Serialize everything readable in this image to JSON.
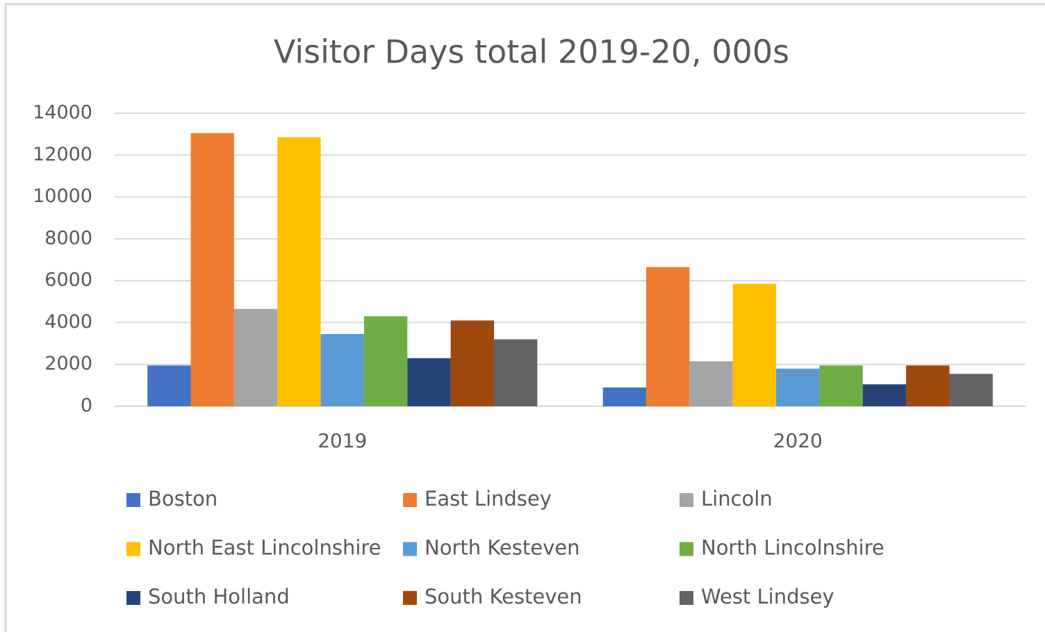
{
  "chart_data": {
    "type": "bar",
    "title": "Visitor Days total 2019-20, 000s",
    "categories": [
      "2019",
      "2020"
    ],
    "series": [
      {
        "name": "Boston",
        "color": "#4472c4",
        "values": [
          1950,
          900
        ]
      },
      {
        "name": "East Lindsey",
        "color": "#ed7d31",
        "values": [
          13050,
          6650
        ]
      },
      {
        "name": "Lincoln",
        "color": "#a5a5a5",
        "values": [
          4650,
          2150
        ]
      },
      {
        "name": "North East Lincolnshire",
        "color": "#ffc000",
        "values": [
          12850,
          5850
        ]
      },
      {
        "name": "North Kesteven",
        "color": "#5b9bd5",
        "values": [
          3450,
          1800
        ]
      },
      {
        "name": "North Lincolnshire",
        "color": "#70ad47",
        "values": [
          4300,
          1950
        ]
      },
      {
        "name": "South Holland",
        "color": "#264478",
        "values": [
          2300,
          1050
        ]
      },
      {
        "name": "South Kesteven",
        "color": "#9e480e",
        "values": [
          4100,
          1950
        ]
      },
      {
        "name": "West Lindsey",
        "color": "#636363",
        "values": [
          3200,
          1550
        ]
      }
    ],
    "ylim": [
      0,
      14000
    ],
    "yticks": [
      0,
      2000,
      4000,
      6000,
      8000,
      10000,
      12000,
      14000
    ],
    "grid": true,
    "legend": "bottom"
  }
}
